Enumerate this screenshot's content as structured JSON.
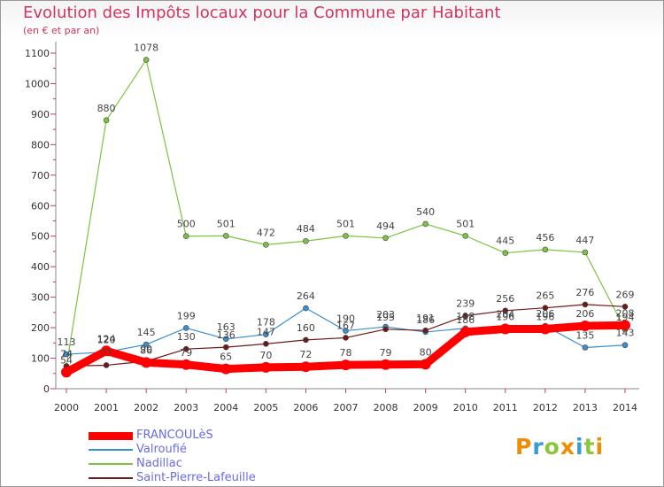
{
  "title": "Evolution des Impôts locaux pour la Commune par Habitant",
  "subtitle": "(en € et par an)",
  "logo": {
    "letters": [
      "P",
      "r",
      "o",
      "x",
      "i",
      "t",
      "i"
    ],
    "colors": [
      "#f08c00",
      "#3a9ad6",
      "#8cc63e",
      "#f08c00",
      "#3a9ad6",
      "#8cc63e",
      "#f08c00"
    ]
  },
  "chart_data": {
    "type": "line",
    "x": [
      2000,
      2001,
      2002,
      2003,
      2004,
      2005,
      2006,
      2007,
      2008,
      2009,
      2010,
      2011,
      2012,
      2013,
      2014
    ],
    "ylim": [
      0,
      1100
    ],
    "yticks": [
      0,
      100,
      200,
      300,
      400,
      500,
      600,
      700,
      800,
      900,
      1000,
      1100
    ],
    "grid": false,
    "legend_position": "bottom-left",
    "series": [
      {
        "name": "FRANCOULèS",
        "color": "#ff0000",
        "values": [
          54,
          124,
          86,
          79,
          65,
          70,
          72,
          78,
          79,
          80,
          186,
          196,
          196,
          206,
          208
        ]
      },
      {
        "name": "Valroufié",
        "color": "#3a8fd0",
        "values": [
          113,
          120,
          145,
          199,
          163,
          178,
          264,
          190,
          203,
          186,
          198,
          204,
          206,
          135,
          143
        ]
      },
      {
        "name": "Nadillac",
        "color": "#7dc242",
        "values": [
          74,
          880,
          1078,
          500,
          501,
          472,
          484,
          501,
          494,
          540,
          501,
          445,
          456,
          447,
          194
        ]
      },
      {
        "name": "Saint-Pierre-Lafeuille",
        "color": "#6e1a1a",
        "values": [
          74,
          77,
          90,
          130,
          136,
          147,
          160,
          167,
          195,
          191,
          239,
          256,
          265,
          276,
          269
        ]
      }
    ]
  }
}
